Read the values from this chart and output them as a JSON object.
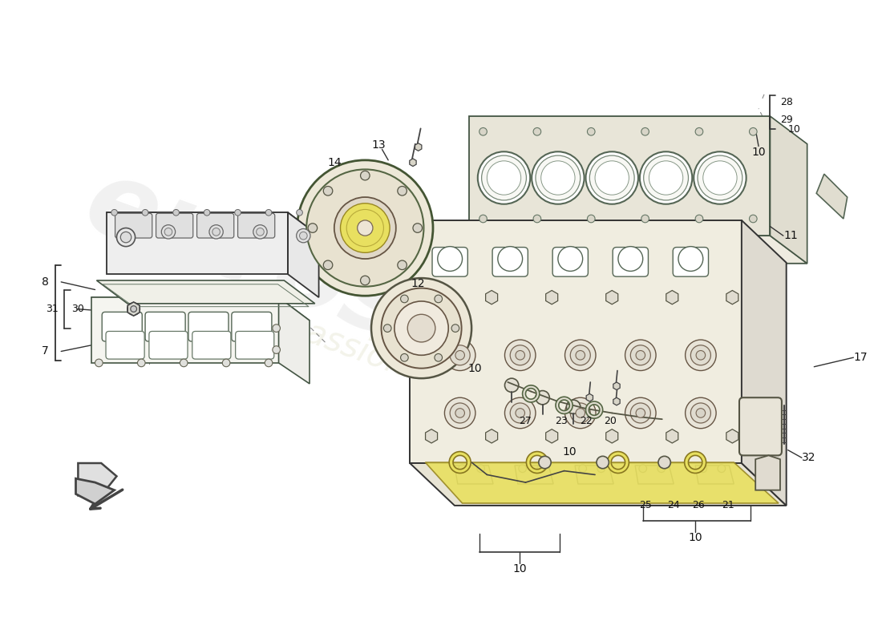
{
  "bg_color": "#ffffff",
  "lc": "#333333",
  "lc_light": "#888888",
  "yellow": "#e8e060",
  "fig_w": 11.0,
  "fig_h": 8.0,
  "dpi": 100
}
